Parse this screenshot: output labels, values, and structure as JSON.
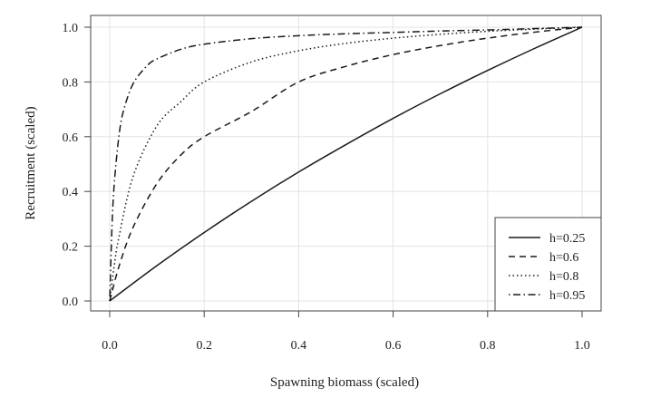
{
  "chart_data": {
    "type": "line",
    "title": "",
    "xlabel": "Spawning biomass (scaled)",
    "ylabel": "Recruitment (scaled)",
    "xlim": [
      0,
      1
    ],
    "ylim": [
      0,
      1
    ],
    "x_ticks": [
      "0.0",
      "0.2",
      "0.4",
      "0.6",
      "0.8",
      "1.0"
    ],
    "y_ticks": [
      "0.0",
      "0.2",
      "0.4",
      "0.6",
      "0.8",
      "1.0"
    ],
    "grid": true,
    "legend_position": "bottom-right",
    "series": [
      {
        "name": "h=0.25",
        "linestyle": "solid",
        "x": [
          0,
          0.1,
          0.2,
          0.3,
          0.4,
          0.5,
          0.6,
          0.7,
          0.8,
          0.9,
          1.0
        ],
        "y": [
          0,
          0.129,
          0.25,
          0.364,
          0.471,
          0.571,
          0.667,
          0.757,
          0.842,
          0.923,
          1.0
        ]
      },
      {
        "name": "h=0.6",
        "linestyle": "dashed",
        "x": [
          0,
          0.02,
          0.05,
          0.1,
          0.15,
          0.2,
          0.3,
          0.4,
          0.5,
          0.6,
          0.7,
          0.8,
          0.9,
          1.0
        ],
        "y": [
          0,
          0.128,
          0.271,
          0.429,
          0.532,
          0.6,
          0.692,
          0.8,
          0.857,
          0.9,
          0.933,
          0.96,
          0.982,
          1.0
        ]
      },
      {
        "name": "h=0.8",
        "linestyle": "dotted",
        "x": [
          0,
          0.01,
          0.02,
          0.05,
          0.1,
          0.15,
          0.2,
          0.3,
          0.4,
          0.5,
          0.6,
          0.7,
          0.8,
          0.9,
          1.0
        ],
        "y": [
          0,
          0.134,
          0.237,
          0.457,
          0.64,
          0.727,
          0.8,
          0.873,
          0.914,
          0.941,
          0.96,
          0.974,
          0.985,
          0.993,
          1.0
        ]
      },
      {
        "name": "h=0.95",
        "linestyle": "dotdash",
        "x": [
          0,
          0.005,
          0.01,
          0.02,
          0.03,
          0.05,
          0.08,
          0.1,
          0.15,
          0.2,
          0.3,
          0.4,
          0.5,
          0.6,
          0.7,
          0.8,
          0.9,
          1.0
        ],
        "y": [
          0,
          0.279,
          0.436,
          0.609,
          0.7,
          0.795,
          0.861,
          0.884,
          0.919,
          0.938,
          0.958,
          0.969,
          0.976,
          0.981,
          0.986,
          0.99,
          0.995,
          1.0
        ]
      }
    ]
  }
}
